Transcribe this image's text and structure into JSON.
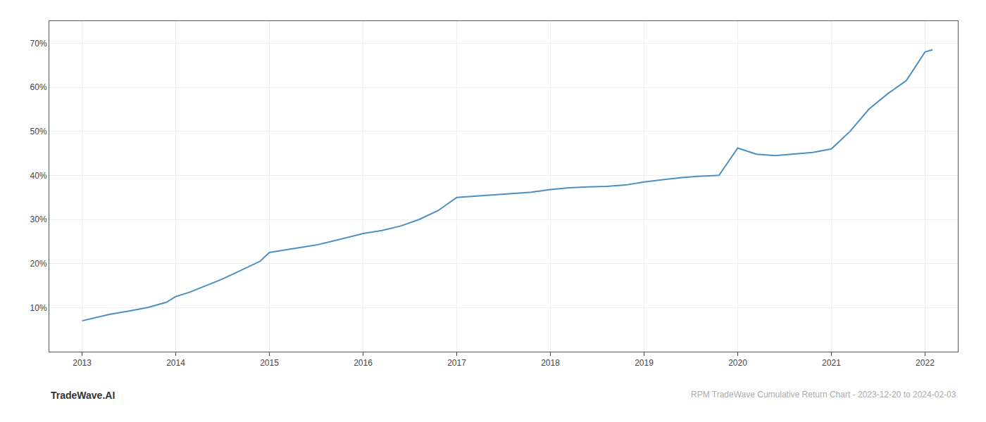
{
  "chart_data": {
    "type": "line",
    "x": [
      2013.0,
      2013.15,
      2013.3,
      2013.5,
      2013.7,
      2013.9,
      2014.0,
      2014.15,
      2014.3,
      2014.5,
      2014.7,
      2014.9,
      2015.0,
      2015.15,
      2015.3,
      2015.5,
      2015.7,
      2015.9,
      2016.0,
      2016.2,
      2016.4,
      2016.6,
      2016.8,
      2017.0,
      2017.2,
      2017.4,
      2017.6,
      2017.8,
      2018.0,
      2018.2,
      2018.4,
      2018.6,
      2018.8,
      2019.0,
      2019.2,
      2019.4,
      2019.6,
      2019.8,
      2020.0,
      2020.2,
      2020.4,
      2020.6,
      2020.8,
      2021.0,
      2021.2,
      2021.4,
      2021.6,
      2021.8,
      2022.0,
      2022.08
    ],
    "values": [
      7.0,
      7.8,
      8.5,
      9.2,
      10.0,
      11.2,
      12.5,
      13.5,
      14.8,
      16.5,
      18.5,
      20.5,
      22.5,
      23.0,
      23.5,
      24.2,
      25.2,
      26.2,
      26.8,
      27.5,
      28.5,
      30.0,
      32.0,
      35.0,
      35.3,
      35.6,
      35.9,
      36.2,
      36.8,
      37.2,
      37.4,
      37.5,
      37.8,
      38.5,
      39.0,
      39.5,
      39.8,
      40.0,
      46.2,
      44.8,
      44.5,
      44.8,
      45.2,
      46.0,
      50.0,
      55.0,
      58.5,
      61.5,
      68.0,
      68.5
    ],
    "color": "#4a90c4",
    "xlim": [
      2012.65,
      2022.35
    ],
    "xticks": [
      2013,
      2014,
      2015,
      2016,
      2017,
      2018,
      2019,
      2020,
      2021,
      2022
    ],
    "ylim": [
      0,
      75
    ],
    "yticks": [
      {
        "value": 10,
        "label": "10%"
      },
      {
        "value": 20,
        "label": "20%"
      },
      {
        "value": 30,
        "label": "30%"
      },
      {
        "value": 40,
        "label": "40%"
      },
      {
        "value": 50,
        "label": "50%"
      },
      {
        "value": 60,
        "label": "60%"
      },
      {
        "value": 70,
        "label": "70%"
      }
    ],
    "grid": true,
    "annotations": [
      "TradeWave.AI",
      "RPM TradeWave Cumulative Return Chart - 2023-12-20 to 2024-02-03"
    ]
  }
}
